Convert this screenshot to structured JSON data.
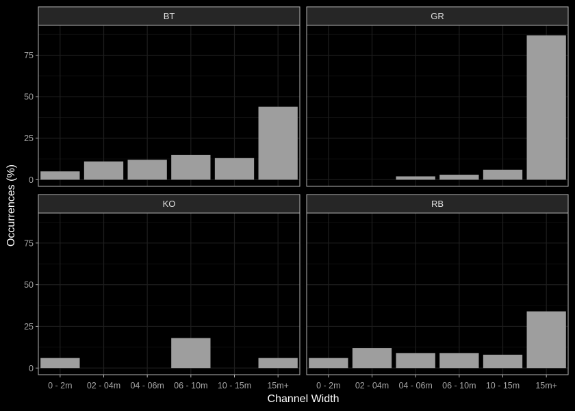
{
  "chart_data": {
    "type": "bar",
    "xlabel": "Channel Width",
    "ylabel": "Occurrences (%)",
    "ylim": [
      -4,
      93
    ],
    "y_ticks": [
      0,
      25,
      50,
      75
    ],
    "y_tick_labels": [
      "0",
      "25",
      "50",
      "75"
    ],
    "grid": true,
    "categories": [
      "0 - 2m",
      "02 - 04m",
      "04 - 06m",
      "06 - 10m",
      "10 - 15m",
      "15m+"
    ],
    "colors": {
      "background": "#000000",
      "panel": "#000000",
      "panel_border": "#b3b3b3",
      "strip": "#262626",
      "bar": "#9e9e9e",
      "grid_major": "#1e1e1e",
      "grid_minor": "#111111"
    },
    "facets": [
      {
        "name": "BT",
        "values": [
          5,
          11,
          12,
          15,
          13,
          44
        ]
      },
      {
        "name": "GR",
        "values": [
          0,
          0,
          2,
          3,
          6,
          87
        ]
      },
      {
        "name": "KO",
        "values": [
          6,
          0,
          0,
          18,
          0,
          6
        ]
      },
      {
        "name": "RB",
        "values": [
          6,
          12,
          9,
          9,
          8,
          34
        ]
      }
    ]
  }
}
